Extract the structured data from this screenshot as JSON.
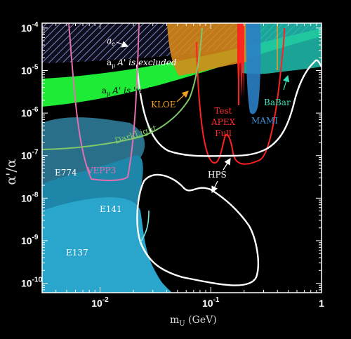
{
  "chart_data": {
    "type": "area",
    "xlabel_main": "m",
    "xlabel_sub": "U",
    "xlabel_unit": " (GeV)",
    "ylabel": "α'/α",
    "x_scale": "log",
    "y_scale": "log",
    "xlim": [
      0.003,
      1.0
    ],
    "ylim": [
      6e-11,
      0.00013
    ],
    "x_ticks": [
      {
        "value": 0.01,
        "base": "10",
        "exp": "-2"
      },
      {
        "value": 0.1,
        "base": "10",
        "exp": "-1"
      },
      {
        "value": 1,
        "base": "1",
        "exp": ""
      }
    ],
    "y_ticks": [
      {
        "value": 0.0001,
        "base": "10",
        "exp": "-4"
      },
      {
        "value": 1e-05,
        "base": "10",
        "exp": "-5"
      },
      {
        "value": 1e-06,
        "base": "10",
        "exp": "-6"
      },
      {
        "value": 1e-07,
        "base": "10",
        "exp": "-7"
      },
      {
        "value": 1e-08,
        "base": "10",
        "exp": "-8"
      },
      {
        "value": 1e-09,
        "base": "10",
        "exp": "-9"
      },
      {
        "value": 1e-10,
        "base": "10",
        "exp": "-10"
      }
    ],
    "colors": {
      "e774": "#2a7fa0",
      "e141": "#1f8fb0",
      "e137": "#2aa8cf",
      "ae_band": "#5b6fb0",
      "amu_band": "#33ff44",
      "kloe": "#d98a1a",
      "babar": "#35e0b8",
      "mami": "#2f7fc0",
      "apex": "#ff2020",
      "hps": "#ffffff",
      "vepp3": "#e06aa8",
      "darklight": "#80c870",
      "cyan_fill": "#20c8c0"
    },
    "labels": {
      "ae": "a",
      "ae_sub": "e",
      "amu_excluded": "A' is excluded",
      "amu_sub": "μ",
      "amu_prefix": "a",
      "amu_welcome": "A' is 'welcome'",
      "kloe": "KLOE",
      "darklight": "DarkLight",
      "vepp3": "VEPP3",
      "e774": "E774",
      "e141": "E141",
      "e137": "E137",
      "test": "Test",
      "apex": "APEX",
      "full": "Full",
      "mami": "MAMI",
      "babar": "BaBar",
      "hps": "HPS"
    },
    "series": [
      {
        "name": "E774",
        "x": [
          0.003,
          0.004,
          0.005,
          0.008,
          0.011,
          0.013,
          0.015
        ],
        "y": [
          1e-09,
          4e-07,
          1e-06,
          1.2e-06,
          3e-07,
          8e-08,
          2e-08
        ]
      },
      {
        "name": "E141",
        "x": [
          0.003,
          0.005,
          0.01,
          0.015,
          0.02,
          0.025
        ],
        "y": [
          4e-09,
          1e-08,
          4e-08,
          8e-08,
          1e-09,
          2e-10
        ]
      },
      {
        "name": "E137",
        "x": [
          0.003,
          0.01,
          0.02,
          0.03
        ],
        "y": [
          1e-09,
          2e-10,
          8e-11,
          6e-11
        ]
      },
      {
        "name": "VEPP3",
        "x": [
          0.0055,
          0.0066,
          0.008,
          0.016,
          0.018,
          0.021
        ],
        "y": [
          4.5e-07,
          1.1e-07,
          2.5e-08,
          2.5e-08,
          1.1e-07,
          4.5e-06
        ]
      },
      {
        "name": "DarkLight",
        "x": [
          0.003,
          0.01,
          0.02,
          0.04,
          0.07,
          0.08
        ],
        "y": [
          1.1e-07,
          1.2e-07,
          1.7e-07,
          4.5e-07,
          2.5e-06,
          6e-06
        ]
      },
      {
        "name": "HPS",
        "x": [
          0.026,
          0.035,
          0.05,
          0.07,
          0.09,
          0.12,
          0.16,
          0.2,
          0.28,
          0.4,
          0.6,
          0.75
        ],
        "y": [
          3e-06,
          4.5e-07,
          1.8e-07,
          1.1e-07,
          1e-07,
          9e-08,
          1.1e-07,
          1.2e-07,
          1.3e-07,
          4.5e-07,
          2.5e-06,
          2e-05
        ]
      },
      {
        "name": "Test APEX",
        "x": [
          0.065,
          0.07,
          0.08,
          0.1,
          0.11,
          0.13,
          0.15,
          0.17,
          0.2
        ],
        "y": [
          0.0001,
          3e-06,
          1.1e-07,
          6.8e-08,
          7e-08,
          2.2e-07,
          6.5e-08,
          7e-08,
          1e-05
        ]
      },
      {
        "name": "KLOE",
        "x": [
          0.05,
          0.06,
          0.1,
          0.2,
          0.3,
          0.4,
          0.5
        ],
        "y": [
          5.5e-05,
          1.8e-05,
          1.5e-05,
          1.6e-05,
          1.8e-05,
          9.2e-06,
          8.2e-06
        ]
      },
      {
        "name": "BaBar",
        "x": [
          0.2,
          0.3,
          0.5,
          0.7,
          1.0
        ],
        "y": [
          2e-05,
          7.1e-06,
          8.1e-06,
          7.5e-06,
          7.1e-06
        ]
      },
      {
        "name": "MAMI",
        "x": [
          0.22,
          0.24,
          0.26,
          0.3
        ],
        "y": [
          3e-06,
          9e-07,
          1.5e-06,
          2.5e-05
        ]
      }
    ]
  }
}
